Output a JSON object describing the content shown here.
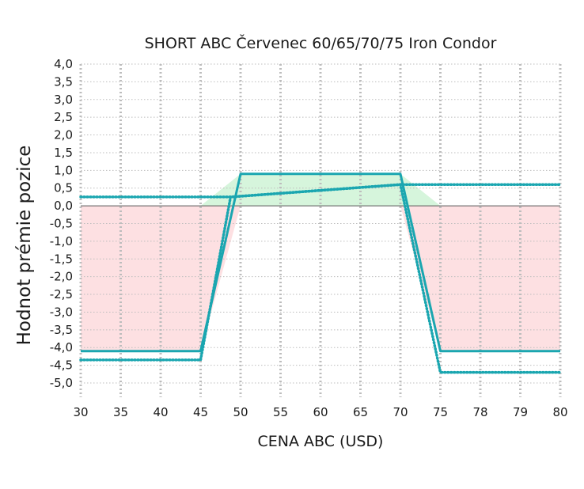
{
  "chart_data": {
    "type": "line",
    "title": "SHORT ABC Červenec 60/65/70/75 Iron Condor",
    "xlabel": "CENA ABC (USD)",
    "ylabel": "Hodnot prémie pozice",
    "categories": [
      "30",
      "35",
      "40",
      "45",
      "50",
      "55",
      "60",
      "65",
      "70",
      "75",
      "78",
      "79",
      "80"
    ],
    "yticks": [
      "4,0",
      "3,5",
      "3,0",
      "2,5",
      "2,0",
      "1,5",
      "1,0",
      "0,5",
      "0,0",
      "-0,5",
      "-1,0",
      "-1,5",
      "-2,0",
      "-2,5",
      "-3,0",
      "-3,5",
      "-4,0",
      "-4,5",
      "-5,0"
    ],
    "ylim": [
      -5.0,
      4.0
    ],
    "grid": true,
    "series": [
      {
        "style": "solid",
        "color": "#1aa6b0",
        "points": [
          [
            0,
            -4.1
          ],
          [
            3,
            -4.1
          ],
          [
            4,
            0.9
          ],
          [
            8,
            0.9
          ],
          [
            9,
            -4.1
          ],
          [
            12,
            -4.1
          ]
        ]
      },
      {
        "style": "dotted",
        "color": "#1aa6b0",
        "points": [
          [
            0,
            -4.35
          ],
          [
            3,
            -4.35
          ],
          [
            3.75,
            0.25
          ],
          [
            8,
            0.6
          ],
          [
            9,
            -4.7
          ],
          [
            12,
            -4.7
          ]
        ]
      },
      {
        "style": "dotted",
        "color": "#1aa6b0",
        "points": [
          [
            0,
            0.25
          ],
          [
            3.75,
            0.25
          ],
          [
            8,
            0.6
          ],
          [
            12,
            0.6
          ]
        ]
      }
    ],
    "colors": {
      "profit_fill": "#d6f5dc",
      "loss_fill": "#fde0e2",
      "zero_line": "#555555",
      "grid": "#bdbdbd"
    }
  }
}
